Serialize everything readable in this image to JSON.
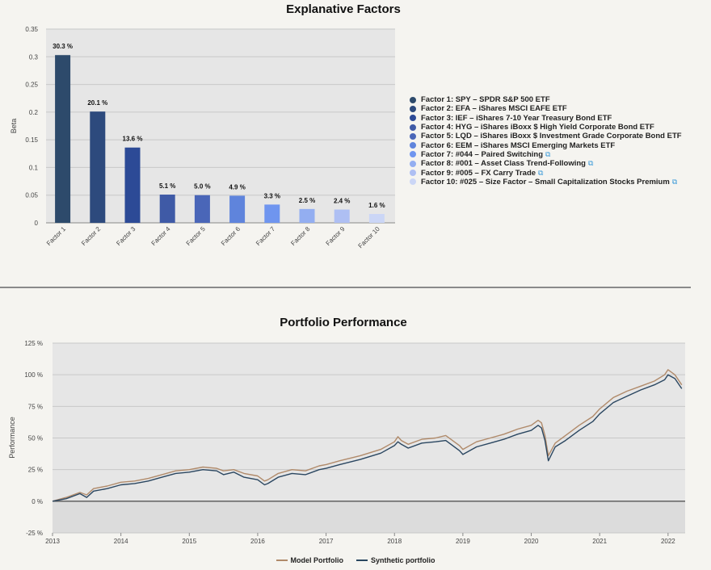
{
  "chart_data": [
    {
      "type": "bar",
      "title": "Explanative Factors",
      "ylabel": "Beta",
      "ylim": [
        0,
        0.35
      ],
      "yticks": [
        0,
        0.05,
        0.1,
        0.15,
        0.2,
        0.25,
        0.3,
        0.35
      ],
      "ytick_labels": [
        "0",
        "0.05",
        "0.1",
        "0.15",
        "0.2",
        "0.25",
        "0.3",
        "0.35"
      ],
      "grid": true,
      "legend_position": "right",
      "categories": [
        "Factor 1",
        "Factor 2",
        "Factor 3",
        "Factor 4",
        "Factor 5",
        "Factor 6",
        "Factor 7",
        "Factor 8",
        "Factor 9",
        "Factor 10"
      ],
      "values": [
        0.303,
        0.201,
        0.136,
        0.051,
        0.05,
        0.049,
        0.033,
        0.025,
        0.024,
        0.016
      ],
      "data_labels": [
        "30.3 %",
        "20.1 %",
        "13.6 %",
        "5.1 %",
        "5.0 %",
        "4.9 %",
        "3.3 %",
        "2.5 %",
        "2.4 %",
        "1.6 %"
      ],
      "colors": [
        "#2d4a6b",
        "#2d4a7d",
        "#2c4a96",
        "#3f5aa6",
        "#4a66b8",
        "#5f84dc",
        "#6f95ef",
        "#93aef1",
        "#aebff3",
        "#cbd6f6"
      ],
      "legend": [
        {
          "label": "Factor 1: SPY – SPDR S&P 500 ETF",
          "link": false
        },
        {
          "label": "Factor 2: EFA – iShares MSCI EAFE ETF",
          "link": false
        },
        {
          "label": "Factor 3: IEF – iShares 7-10 Year Treasury Bond ETF",
          "link": false
        },
        {
          "label": "Factor 4: HYG – iShares iBoxx $ High Yield Corporate Bond ETF",
          "link": false
        },
        {
          "label": "Factor 5: LQD – iShares iBoxx $ Investment Grade Corporate Bond ETF",
          "link": false
        },
        {
          "label": "Factor 6: EEM – iShares MSCI Emerging Markets ETF",
          "link": false
        },
        {
          "label": "Factor 7: #044 – Paired Switching",
          "link": true
        },
        {
          "label": "Factor 8: #001 – Asset Class Trend-Following",
          "link": true
        },
        {
          "label": "Factor 9: #005 – FX Carry Trade",
          "link": true
        },
        {
          "label": "Factor 10: #025 – Size Factor – Small Capitalization Stocks Premium",
          "link": true
        }
      ],
      "link_icon": "external-link-icon"
    },
    {
      "type": "line",
      "title": "Portfolio Performance",
      "ylabel": "Performance",
      "ylim": [
        -25,
        125
      ],
      "yticks": [
        -25,
        0,
        25,
        50,
        75,
        100,
        125
      ],
      "ytick_labels": [
        "-25 %",
        "0 %",
        "25 %",
        "50 %",
        "75 %",
        "100 %",
        "125 %"
      ],
      "xlim": [
        2013.0,
        2022.25
      ],
      "xticks": [
        2013,
        2014,
        2015,
        2016,
        2017,
        2018,
        2019,
        2020,
        2021,
        2022
      ],
      "xtick_labels": [
        "2013",
        "2014",
        "2015",
        "2016",
        "2017",
        "2018",
        "2019",
        "2020",
        "2021",
        "2022"
      ],
      "grid": true,
      "legend_position": "bottom",
      "series": [
        {
          "name": "Model Portfolio",
          "color": "#b08a6a",
          "x": [
            2013.0,
            2013.2,
            2013.4,
            2013.5,
            2013.6,
            2013.8,
            2014.0,
            2014.2,
            2014.4,
            2014.6,
            2014.8,
            2015.0,
            2015.2,
            2015.4,
            2015.5,
            2015.65,
            2015.8,
            2016.0,
            2016.1,
            2016.15,
            2016.3,
            2016.5,
            2016.7,
            2016.9,
            2017.0,
            2017.2,
            2017.5,
            2017.8,
            2018.0,
            2018.05,
            2018.1,
            2018.2,
            2018.4,
            2018.6,
            2018.75,
            2018.95,
            2019.0,
            2019.2,
            2019.4,
            2019.6,
            2019.8,
            2020.0,
            2020.1,
            2020.15,
            2020.2,
            2020.25,
            2020.35,
            2020.5,
            2020.7,
            2020.9,
            2021.0,
            2021.2,
            2021.4,
            2021.6,
            2021.8,
            2021.95,
            2022.0,
            2022.1,
            2022.2
          ],
          "y": [
            0,
            3,
            7,
            5,
            10,
            12,
            15,
            16,
            18,
            21,
            24,
            25,
            27,
            26,
            24,
            25,
            22,
            20,
            16,
            17,
            22,
            25,
            24,
            28,
            29,
            32,
            36,
            41,
            47,
            51,
            48,
            45,
            49,
            50,
            52,
            44,
            41,
            47,
            50,
            53,
            57,
            60,
            64,
            62,
            52,
            36,
            46,
            52,
            60,
            67,
            73,
            82,
            87,
            91,
            95,
            100,
            104,
            100,
            92
          ]
        },
        {
          "name": "Synthetic portfolio",
          "color": "#2a4660",
          "x": [
            2013.0,
            2013.2,
            2013.4,
            2013.5,
            2013.6,
            2013.8,
            2014.0,
            2014.2,
            2014.4,
            2014.6,
            2014.8,
            2015.0,
            2015.2,
            2015.4,
            2015.5,
            2015.65,
            2015.8,
            2016.0,
            2016.1,
            2016.15,
            2016.3,
            2016.5,
            2016.7,
            2016.9,
            2017.0,
            2017.2,
            2017.5,
            2017.8,
            2018.0,
            2018.05,
            2018.1,
            2018.2,
            2018.4,
            2018.6,
            2018.75,
            2018.95,
            2019.0,
            2019.2,
            2019.4,
            2019.6,
            2019.8,
            2020.0,
            2020.1,
            2020.15,
            2020.2,
            2020.25,
            2020.35,
            2020.5,
            2020.7,
            2020.9,
            2021.0,
            2021.2,
            2021.4,
            2021.6,
            2021.8,
            2021.95,
            2022.0,
            2022.1,
            2022.2
          ],
          "y": [
            0,
            2,
            6,
            3,
            8,
            10,
            13,
            14,
            16,
            19,
            22,
            23,
            25,
            24,
            21,
            23,
            19,
            17,
            13,
            14,
            19,
            22,
            21,
            25,
            26,
            29,
            33,
            38,
            44,
            47,
            45,
            42,
            46,
            47,
            48,
            40,
            37,
            43,
            46,
            49,
            53,
            56,
            60,
            58,
            48,
            32,
            43,
            48,
            56,
            63,
            69,
            78,
            83,
            88,
            92,
            96,
            100,
            97,
            89
          ]
        }
      ]
    }
  ]
}
